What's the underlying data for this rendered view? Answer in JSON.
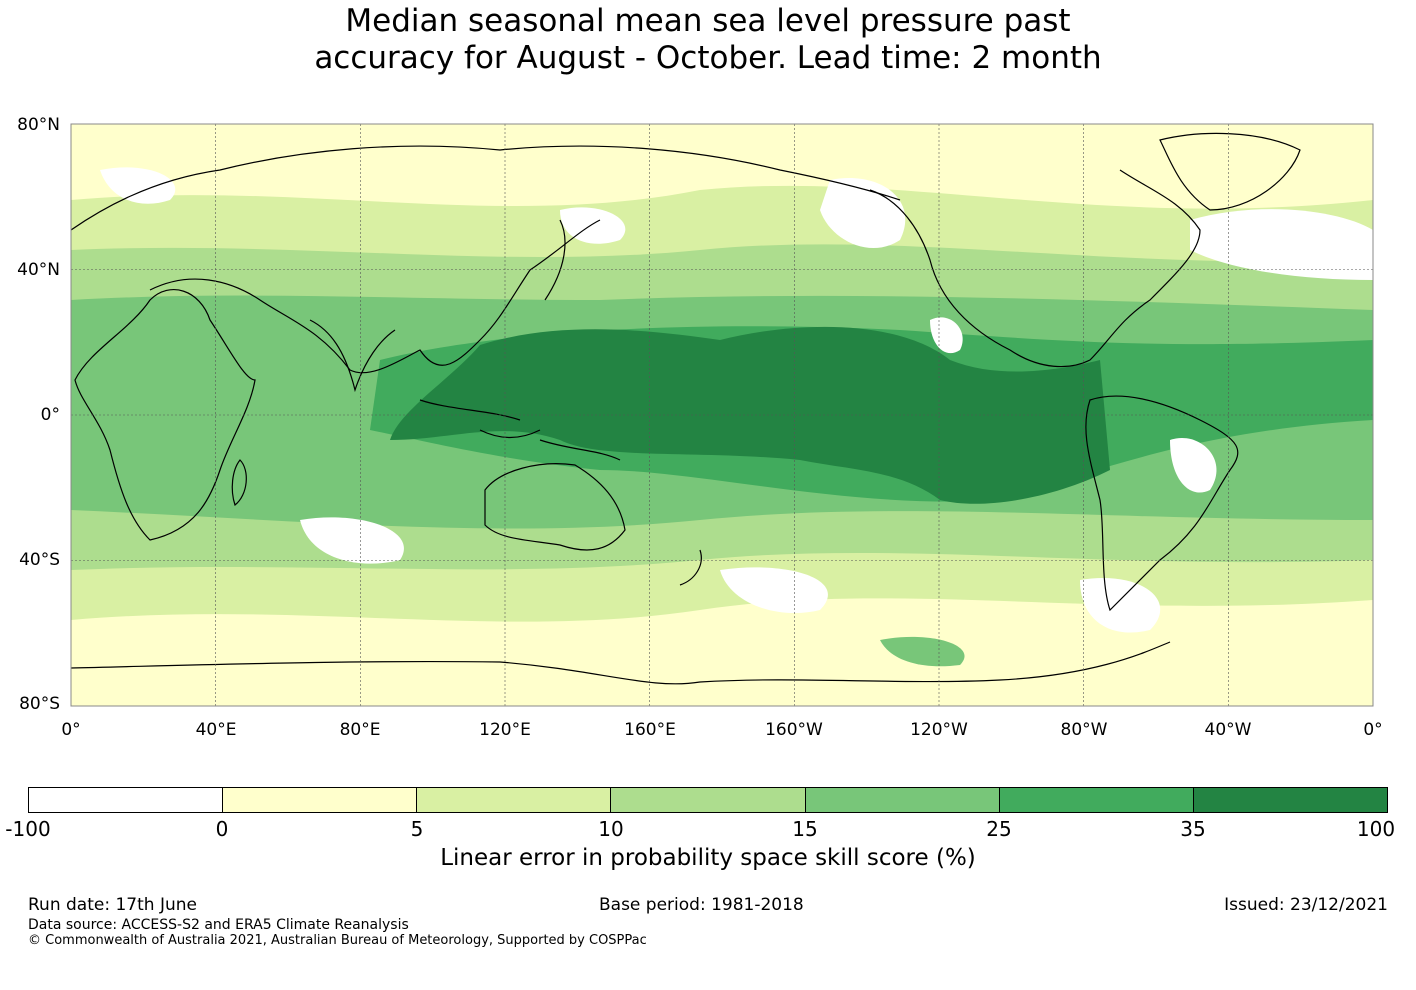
{
  "title": {
    "line1": "Median seasonal mean sea level pressure past",
    "line2": "accuracy for August - October. Lead time: 2 month"
  },
  "map": {
    "lat_labels": [
      "80°N",
      "40°N",
      "0°",
      "40°S",
      "80°S"
    ],
    "lon_labels": [
      "0°",
      "40°E",
      "80°E",
      "120°E",
      "160°E",
      "160°W",
      "120°W",
      "80°W",
      "40°W",
      "0°"
    ]
  },
  "colorbar": {
    "ticks": [
      "-100",
      "0",
      "5",
      "10",
      "15",
      "25",
      "35",
      "100"
    ],
    "colors": [
      "#ffffff",
      "#ffffcc",
      "#d9f0a3",
      "#addd8e",
      "#78c679",
      "#41ab5d",
      "#238443"
    ],
    "label": "Linear error in probability space skill score (%)"
  },
  "footer": {
    "run_date": "Run date: 17th June",
    "base_period": "Base period: 1981-2018",
    "issued": "Issued: 23/12/2021",
    "data_source": "Data source: ACCESS-S2 and ERA5 Climate Reanalysis",
    "copyright": "© Commonwealth of Australia 2021, Australian Bureau of Meteorology, Supported by COSPPac"
  }
}
